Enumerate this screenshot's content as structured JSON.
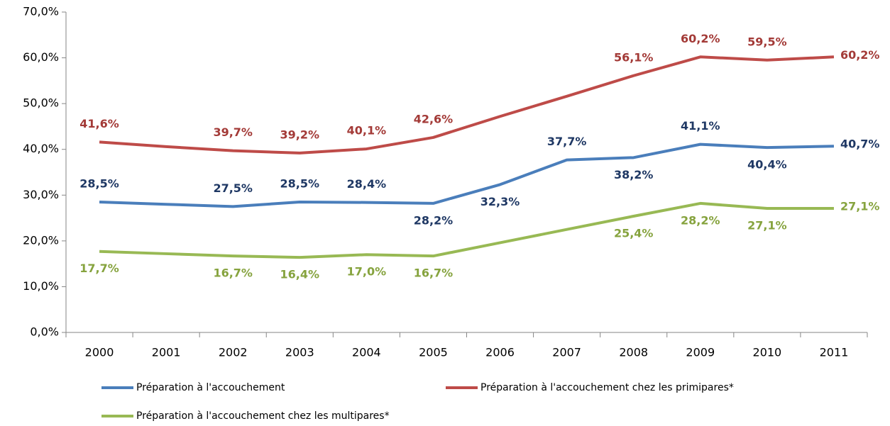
{
  "chart_data": {
    "type": "line",
    "categories": [
      "2000",
      "2001",
      "2002",
      "2003",
      "2004",
      "2005",
      "2006",
      "2007",
      "2008",
      "2009",
      "2010",
      "2011"
    ],
    "series": [
      {
        "name": "Préparation à l'accouchement",
        "color": "#4a7ebb",
        "label_color": "#1f3864",
        "values": [
          28.5,
          28.0,
          27.5,
          28.5,
          28.4,
          28.2,
          32.3,
          37.7,
          38.2,
          41.1,
          40.4,
          40.7
        ],
        "value_labels": [
          "28,5%",
          null,
          "27,5%",
          "28,5%",
          "28,4%",
          "28,2%",
          "32,3%",
          "37,7%",
          "38,2%",
          "41,1%",
          "40,4%",
          "40,7%"
        ]
      },
      {
        "name": "Préparation à l'accouchement chez les primipares*",
        "color": "#be4b48",
        "label_color": "#a33a37",
        "values": [
          41.6,
          40.6,
          39.7,
          39.2,
          40.1,
          42.6,
          47.2,
          51.6,
          56.1,
          60.2,
          59.5,
          60.2
        ],
        "value_labels": [
          "41,6%",
          null,
          "39,7%",
          "39,2%",
          "40,1%",
          "42,6%",
          null,
          null,
          "56,1%",
          "60,2%",
          "59,5%",
          "60,2%"
        ]
      },
      {
        "name": "Préparation à l'accouchement chez les multipares*",
        "color": "#98b954",
        "label_color": "#86a33e",
        "values": [
          17.7,
          17.2,
          16.7,
          16.4,
          17.0,
          16.7,
          19.6,
          22.5,
          25.4,
          28.2,
          27.1,
          27.1
        ],
        "value_labels": [
          "17,7%",
          null,
          "16,7%",
          "16,4%",
          "17,0%",
          "16,7%",
          null,
          null,
          "25,4%",
          "28,2%",
          "27,1%",
          "27,1%"
        ]
      }
    ],
    "ylim": [
      0,
      70
    ],
    "yticks": [
      {
        "value": 0,
        "label": "0,0%"
      },
      {
        "value": 10,
        "label": "10,0%"
      },
      {
        "value": 20,
        "label": "20,0%"
      },
      {
        "value": 30,
        "label": "30,0%"
      },
      {
        "value": 40,
        "label": "40,0%"
      },
      {
        "value": 50,
        "label": "50,0%"
      },
      {
        "value": 60,
        "label": "60,0%"
      },
      {
        "value": 70,
        "label": "70,0%"
      }
    ],
    "grid": false,
    "legend": "bottom"
  }
}
